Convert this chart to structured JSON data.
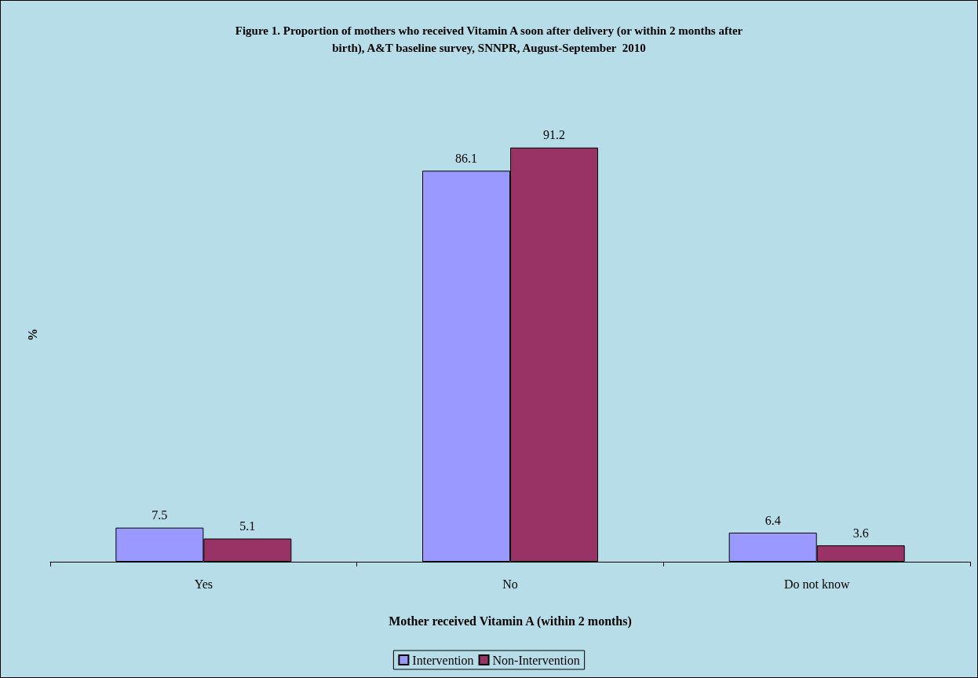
{
  "chart_data": {
    "type": "bar",
    "title": "Figure 1. Proportion of mothers who received Vitamin A soon after delivery (or within 2 months after\nbirth), A&T baseline survey, SNNPR, August-September  2010",
    "xlabel": "Mother received Vitamin A (within 2 months)",
    "ylabel": "%",
    "categories": [
      "Yes",
      "No",
      "Do not know"
    ],
    "series": [
      {
        "name": "Intervention",
        "color": "#9999ff",
        "values": [
          7.5,
          86.1,
          6.4
        ]
      },
      {
        "name": "Non-Intervention",
        "color": "#993366",
        "values": [
          5.1,
          91.2,
          3.6
        ]
      }
    ],
    "relative": false,
    "data_labels": true,
    "legend": "bottom",
    "grid": false
  }
}
